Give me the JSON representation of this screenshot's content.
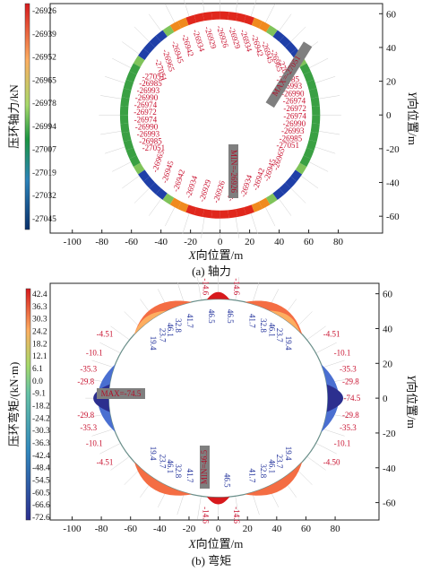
{
  "chart_data": [
    {
      "type": "ring",
      "colorbar_label": "压环轴力/kN",
      "colorbar_ticks": [
        "-26926",
        "-26939",
        "-26952",
        "-26965",
        "-26978",
        "-26994",
        "-27007",
        "-27019",
        "-27032",
        "-27045"
      ],
      "xlabel_var": "X",
      "xlabel_rest": "向位置/m",
      "ylabel_var": "Y",
      "ylabel_rest": "向位置/m",
      "xticks": [
        -100,
        -80,
        -60,
        -40,
        -20,
        0,
        20,
        40,
        60,
        80
      ],
      "yticks": [
        60,
        40,
        20,
        0,
        -20,
        -40,
        -60
      ],
      "xlim": [
        -115,
        110
      ],
      "ylim": [
        -70,
        66
      ],
      "ring": {
        "a": 65,
        "b": 59
      },
      "caption_letter": "(a) ",
      "caption_text": "轴力",
      "max_text": "MAX=-27051",
      "min_text": "MIN=-26926",
      "labels_top": [
        "-27051",
        "-26965",
        "-26945",
        "-26942",
        "-26934",
        "-26929",
        "-26926",
        "-26929",
        "-26934",
        "-26942",
        "-26945",
        "-26965",
        "-27051"
      ],
      "labels_right": [
        "-26985",
        "-26993",
        "-26990",
        "-26974",
        "-26972",
        "-26974",
        "-26990",
        "-26993",
        "-26985",
        "-27051"
      ],
      "labels_bottom": [
        "-26965",
        "-26945",
        "-26942",
        "-26934",
        "-26929",
        "-26926",
        "-26929",
        "-26934",
        "-26942",
        "-26945",
        "-26965"
      ],
      "labels_left": [
        "-27051",
        "-26985",
        "-26993",
        "-26990",
        "-26974",
        "-26972",
        "-26974",
        "-26990",
        "-26993",
        "-26985",
        "-27051"
      ]
    },
    {
      "type": "ring",
      "colorbar_label": "压环弯矩/(kN·m)",
      "colorbar_ticks": [
        "42.4",
        "36.3",
        "30.3",
        "24.2",
        "18.2",
        "12.1",
        "6.1",
        "0.0",
        "-9.1",
        "-18.2",
        "-24.2",
        "-30.3",
        "-36.3",
        "-42.4",
        "-48.4",
        "-54.5",
        "-60.5",
        "-66.6",
        "-72.6"
      ],
      "xlabel_var": "X",
      "xlabel_rest": "向位置/m",
      "ylabel_var": "Y",
      "ylabel_rest": "向位置/m",
      "xticks": [
        -100,
        -80,
        -60,
        -40,
        -20,
        0,
        20,
        40,
        60,
        80
      ],
      "yticks": [
        60,
        40,
        20,
        0,
        -20,
        -40,
        -60
      ],
      "xlim": [
        -115,
        110
      ],
      "ylim": [
        -70,
        66
      ],
      "ring": {
        "a": 75,
        "b": 57
      },
      "caption_letter": "(b) ",
      "caption_text": "弯矩",
      "max_text": "MAX=-74.5",
      "min_text": "MIN=46.5",
      "labels_red": [
        "-14.6",
        "-14.6",
        "-4.51",
        "-10.1",
        "-35.3",
        "-29.8",
        "-29.8",
        "-35.3",
        "-10.1",
        "-4.51",
        "-14.6",
        "-14.6",
        "-4.51",
        "-10.1",
        "-35.3",
        "-29.8",
        "-74.5",
        "-29.8",
        "-35.3",
        "-10.1",
        "-4.50"
      ],
      "labels_blue": [
        "46.5",
        "46.5",
        "41.7",
        "32.8",
        "46.1",
        "23.7",
        "19.4",
        "41.7",
        "32.8",
        "46.1",
        "23.7",
        "19.4",
        "19.4",
        "23.7",
        "46.1",
        "32.8",
        "41.7",
        "46.5",
        "19.4",
        "23.7",
        "46.1",
        "32.8",
        "41.7"
      ]
    }
  ]
}
